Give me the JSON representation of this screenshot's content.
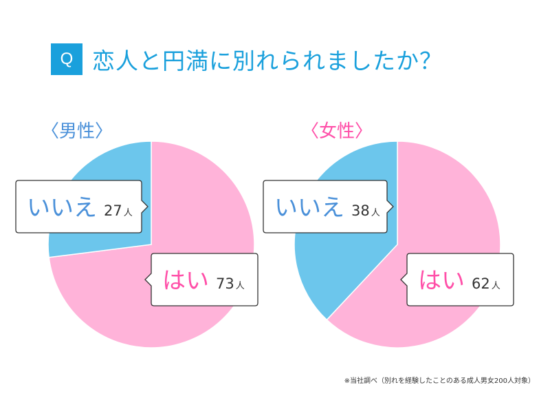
{
  "title": {
    "badge": "Q",
    "text": "恋人と円満に別れられましたか？"
  },
  "colors": {
    "accent": "#1aa0dc",
    "yes": "#ffb3d9",
    "no": "#6cc6ec",
    "yes_text": "#ff4fa8",
    "no_text": "#4a90d9",
    "male_label": "#4a90d9",
    "female_label": "#ff4fa8"
  },
  "chart_data": [
    {
      "type": "pie",
      "title": "〈男性〉",
      "categories": [
        "はい",
        "いいえ"
      ],
      "values": [
        73,
        27
      ],
      "unit": "人",
      "start": "top",
      "direction": "clockwise"
    },
    {
      "type": "pie",
      "title": "〈女性〉",
      "categories": [
        "はい",
        "いいえ"
      ],
      "values": [
        62,
        38
      ],
      "unit": "人",
      "start": "top",
      "direction": "clockwise"
    }
  ],
  "footnote": "※当社調べ（別れを経験したことのある成人男女200人対象）"
}
